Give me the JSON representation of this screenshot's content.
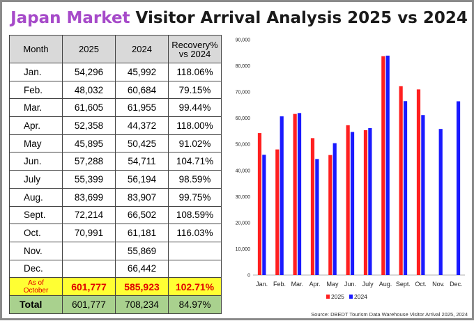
{
  "title": {
    "highlight": "Japan Market",
    "rest": " Visitor Arrival Analysis 2025 vs 2024"
  },
  "table": {
    "headers": [
      "Month",
      "2025",
      "2024",
      "Recovery%",
      "vs 2024"
    ],
    "rows": [
      {
        "month": "Jan.",
        "y2025": "54,296",
        "y2024": "45,992",
        "rec": "118.06%"
      },
      {
        "month": "Feb.",
        "y2025": "48,032",
        "y2024": "60,684",
        "rec": "79.15%"
      },
      {
        "month": "Mar.",
        "y2025": "61,605",
        "y2024": "61,955",
        "rec": "99.44%"
      },
      {
        "month": "Apr.",
        "y2025": "52,358",
        "y2024": "44,372",
        "rec": "118.00%"
      },
      {
        "month": "May",
        "y2025": "45,895",
        "y2024": "50,425",
        "rec": "91.02%"
      },
      {
        "month": "Jun.",
        "y2025": "57,288",
        "y2024": "54,711",
        "rec": "104.71%"
      },
      {
        "month": "July",
        "y2025": "55,399",
        "y2024": "56,194",
        "rec": "98.59%"
      },
      {
        "month": "Aug.",
        "y2025": "83,699",
        "y2024": "83,907",
        "rec": "99.75%"
      },
      {
        "month": "Sept.",
        "y2025": "72,214",
        "y2024": "66,502",
        "rec": "108.59%"
      },
      {
        "month": "Oct.",
        "y2025": "70,991",
        "y2024": "61,181",
        "rec": "116.03%"
      },
      {
        "month": "Nov.",
        "y2025": "",
        "y2024": "55,869",
        "rec": ""
      },
      {
        "month": "Dec.",
        "y2025": "",
        "y2024": "66,442",
        "rec": ""
      }
    ],
    "as_of": {
      "label_line1": "As of",
      "label_line2": "October",
      "y2025": "601,777",
      "y2024": "585,923",
      "rec": "102.71%"
    },
    "total": {
      "label": "Total",
      "y2025": "601,777",
      "y2024": "708,234",
      "rec": "84.97%"
    }
  },
  "chart_data": {
    "type": "bar",
    "categories": [
      "Jan.",
      "Feb.",
      "Mar.",
      "Apr.",
      "May",
      "Jun.",
      "July",
      "Aug.",
      "Sept.",
      "Oct.",
      "Nov.",
      "Dec."
    ],
    "series": [
      {
        "name": "2025",
        "color": "#ff2020",
        "values": [
          54296,
          48032,
          61605,
          52358,
          45895,
          57288,
          55399,
          83699,
          72214,
          70991,
          null,
          null
        ]
      },
      {
        "name": "2024",
        "color": "#1a1aff",
        "values": [
          45992,
          60684,
          61955,
          44372,
          50425,
          54711,
          56194,
          83907,
          66502,
          61181,
          55869,
          66442
        ]
      }
    ],
    "ylim": [
      0,
      90000
    ],
    "yticks": [
      0,
      10000,
      20000,
      30000,
      40000,
      50000,
      60000,
      70000,
      80000,
      90000
    ],
    "ytick_labels": [
      "0",
      "10,000",
      "20,000",
      "30,000",
      "40,000",
      "50,000",
      "60,000",
      "70,000",
      "80,000",
      "90,000"
    ],
    "legend": [
      "2025",
      "2024"
    ],
    "legend_position": "bottom",
    "grid": false
  },
  "source": "Source: DBEDT Tourism Data Warehouse Visitor Arrival 2025, 2024"
}
